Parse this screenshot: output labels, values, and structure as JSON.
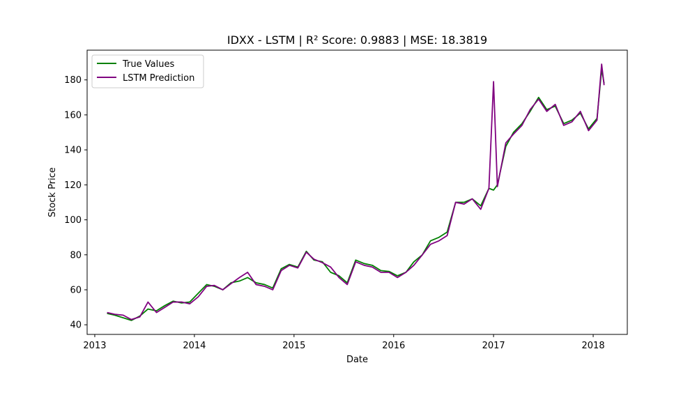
{
  "chart_data": {
    "type": "line",
    "title": "IDXX - LSTM | R² Score: 0.9883 | MSE: 18.3819",
    "xlabel": "Date",
    "ylabel": "Stock Price",
    "x_ticks": [
      "2013",
      "2014",
      "2015",
      "2016",
      "2017",
      "2018"
    ],
    "y_ticks": [
      40,
      60,
      80,
      100,
      120,
      140,
      160,
      180
    ],
    "xlim": [
      "2012-12-04",
      "2018-05-06"
    ],
    "ylim": [
      34.5,
      197
    ],
    "grid": false,
    "legend_position": "top-left",
    "x": [
      "2013-02-15",
      "2013-03-15",
      "2013-04-15",
      "2013-05-15",
      "2013-06-15",
      "2013-07-15",
      "2013-08-15",
      "2013-09-15",
      "2013-10-15",
      "2013-11-15",
      "2013-12-15",
      "2014-01-15",
      "2014-02-15",
      "2014-03-15",
      "2014-04-15",
      "2014-05-15",
      "2014-06-15",
      "2014-07-15",
      "2014-08-15",
      "2014-09-15",
      "2014-10-15",
      "2014-11-15",
      "2014-12-15",
      "2015-01-15",
      "2015-02-15",
      "2015-03-15",
      "2015-04-15",
      "2015-05-15",
      "2015-06-15",
      "2015-07-15",
      "2015-08-15",
      "2015-09-15",
      "2015-10-15",
      "2015-11-15",
      "2015-12-15",
      "2016-01-15",
      "2016-02-15",
      "2016-03-15",
      "2016-04-15",
      "2016-05-15",
      "2016-06-15",
      "2016-07-15",
      "2016-08-15",
      "2016-09-15",
      "2016-10-15",
      "2016-11-15",
      "2016-12-15",
      "2017-01-01",
      "2017-01-15",
      "2017-02-15",
      "2017-03-15",
      "2017-04-15",
      "2017-05-15",
      "2017-06-15",
      "2017-07-15",
      "2017-08-15",
      "2017-09-15",
      "2017-10-15",
      "2017-11-15",
      "2017-12-15",
      "2018-01-15",
      "2018-02-01",
      "2018-02-10"
    ],
    "series": [
      {
        "name": "True Values",
        "color": "#008000",
        "values": [
          46.5,
          45.5,
          44,
          42.5,
          45,
          49,
          48,
          51,
          53.5,
          52.5,
          53,
          58,
          63,
          62,
          60,
          64,
          65,
          67,
          64,
          63,
          61,
          72,
          74.5,
          73,
          82,
          77,
          76,
          70,
          68,
          64,
          77,
          75,
          74,
          71,
          70.5,
          68,
          70,
          76,
          80,
          88,
          90,
          93,
          110,
          110,
          112,
          108,
          118,
          117,
          120,
          142,
          150,
          155,
          162,
          170,
          163,
          165,
          155,
          157,
          161,
          152,
          158,
          186,
          178
        ]
      },
      {
        "name": "LSTM Prediction",
        "color": "#800080",
        "values": [
          47,
          46,
          45.5,
          43,
          44.5,
          53,
          47,
          50,
          53,
          53,
          52,
          56,
          62,
          62.5,
          60,
          63.5,
          67,
          70,
          63,
          62,
          60,
          71,
          74,
          72.5,
          81.5,
          77.5,
          75.5,
          73,
          67,
          63,
          76,
          74,
          73,
          70,
          70,
          67,
          70,
          74,
          80,
          86,
          88,
          91,
          110,
          109,
          112,
          106,
          118,
          179,
          119,
          144,
          149,
          154,
          163,
          169,
          162,
          166,
          154,
          156,
          162,
          151,
          157,
          189,
          177
        ]
      }
    ]
  }
}
